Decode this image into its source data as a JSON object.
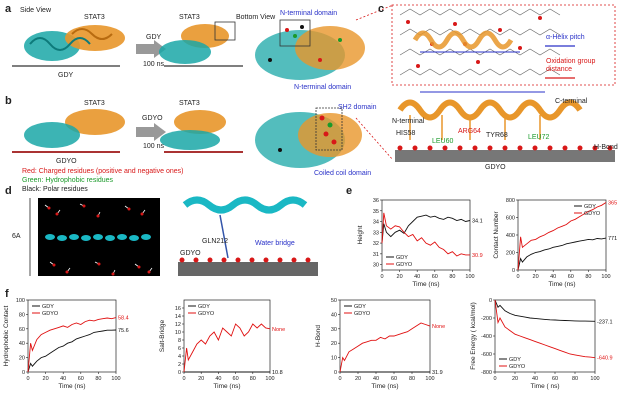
{
  "panels": {
    "a": {
      "letter": "a",
      "side_view": "Side View",
      "bottom_view": "Bottom View",
      "protein_left": "STAT3",
      "protein_right": "STAT3",
      "arrow_top": "GDY",
      "arrow_bottom": "100 ns",
      "surface_left": "GDY",
      "domain_top": "N-terminal domain",
      "domain_bottom": "N-terminal domain"
    },
    "b": {
      "letter": "b",
      "protein_left": "STAT3",
      "protein_right": "STAT3",
      "arrow_top": "GDYO",
      "arrow_bottom": "100 ns",
      "surface_left": "GDYO",
      "domain_top": "SH2 domain",
      "domain_bottom": "Coiled coil domain",
      "legend_red": "Red:    Charged residues (positive and negative ones)",
      "legend_green": "Green:  Hydrophobic residues",
      "legend_black": "Black:  Polar residues"
    },
    "c": {
      "letter": "c",
      "helix_pitch": "α-Helix pitch",
      "oxidation": "Oxidation group distance",
      "n_terminal": "N-terminal",
      "c_terminal": "C-terminal",
      "his58": "HIS58",
      "leu60": "LEU60",
      "arg64": "ARG64",
      "tyr68": "TYR68",
      "leu72": "LEU72",
      "hbond": "H-Bond",
      "surface": "GDYO"
    },
    "d": {
      "letter": "d",
      "thickness": "6A",
      "residue": "GLN212",
      "water_bridge": "Water bridge",
      "surface": "GDYO"
    },
    "e": {
      "letter": "e"
    },
    "f": {
      "letter": "f"
    }
  },
  "colors": {
    "gdy": "#111111",
    "gdyo": "#e01010",
    "label_blue": "#2a32c8",
    "helix_orange": "#e8962a",
    "protein_cyan": "#1aa7a7"
  },
  "chart_data": [
    {
      "id": "height",
      "type": "line",
      "xlabel": "Time (ns)",
      "ylabel": "Height",
      "xlim": [
        0,
        100
      ],
      "ylim": [
        29.5,
        36
      ],
      "xticks": [
        0,
        20,
        40,
        60,
        80,
        100
      ],
      "yticks": [
        30,
        31,
        32,
        33,
        34,
        35,
        36
      ],
      "legend": "bottom-left",
      "series": [
        {
          "name": "GDY",
          "color": "#111111",
          "x": [
            0,
            2,
            5,
            10,
            15,
            20,
            25,
            30,
            35,
            40,
            45,
            50,
            55,
            60,
            65,
            70,
            75,
            80,
            85,
            90,
            95,
            100
          ],
          "y": [
            32.0,
            33.8,
            33.0,
            32.6,
            33.0,
            33.2,
            32.9,
            33.6,
            34.0,
            34.4,
            34.5,
            34.6,
            34.4,
            34.5,
            34.3,
            34.2,
            34.4,
            34.3,
            34.1,
            34.2,
            34.0,
            34.1
          ]
        },
        {
          "name": "GDYO",
          "color": "#e01010",
          "x": [
            0,
            2,
            5,
            10,
            15,
            20,
            25,
            30,
            35,
            40,
            45,
            50,
            55,
            60,
            65,
            70,
            75,
            80,
            85,
            90,
            95,
            100
          ],
          "y": [
            32.0,
            34.8,
            33.6,
            33.3,
            33.6,
            33.5,
            33.0,
            32.6,
            32.8,
            32.2,
            32.5,
            32.0,
            31.8,
            32.1,
            31.6,
            31.4,
            31.0,
            31.2,
            30.8,
            31.0,
            30.9,
            30.9
          ]
        }
      ],
      "end_labels": [
        "34.1",
        "30.9"
      ]
    },
    {
      "id": "contact",
      "type": "line",
      "xlabel": "Time (ns)",
      "ylabel": "Contact Number",
      "xlim": [
        0,
        100
      ],
      "ylim": [
        0,
        800
      ],
      "xticks": [
        0,
        20,
        40,
        60,
        80,
        100
      ],
      "yticks": [
        0,
        200,
        400,
        600,
        800
      ],
      "legend": "top-right",
      "series": [
        {
          "name": "GDY",
          "color": "#111111",
          "x": [
            0,
            3,
            5,
            10,
            15,
            20,
            25,
            30,
            35,
            40,
            45,
            50,
            55,
            60,
            65,
            70,
            75,
            80,
            85,
            90,
            95,
            100
          ],
          "y": [
            0,
            130,
            90,
            150,
            180,
            200,
            210,
            230,
            240,
            260,
            270,
            280,
            300,
            310,
            320,
            330,
            340,
            350,
            345,
            360,
            355,
            365
          ]
        },
        {
          "name": "GDYO",
          "color": "#e01010",
          "x": [
            0,
            3,
            5,
            10,
            15,
            20,
            25,
            30,
            35,
            40,
            45,
            50,
            55,
            60,
            65,
            70,
            75,
            80,
            85,
            90,
            95,
            100
          ],
          "y": [
            0,
            380,
            260,
            300,
            340,
            350,
            380,
            400,
            430,
            450,
            480,
            500,
            520,
            560,
            580,
            610,
            640,
            670,
            690,
            720,
            740,
            771
          ]
        }
      ],
      "end_labels": [
        "771",
        "365"
      ]
    },
    {
      "id": "hydrophobic",
      "type": "line",
      "xlabel": "Time (ns)",
      "ylabel": "Hydrophobic Contact",
      "xlim": [
        0,
        100
      ],
      "ylim": [
        0,
        100
      ],
      "xticks": [
        0,
        20,
        40,
        60,
        80,
        100
      ],
      "yticks": [
        0,
        20,
        40,
        60,
        80,
        100
      ],
      "legend": "top-left",
      "series": [
        {
          "name": "GDY",
          "color": "#111111",
          "x": [
            0,
            3,
            5,
            10,
            15,
            20,
            25,
            30,
            35,
            40,
            45,
            50,
            55,
            60,
            65,
            70,
            75,
            80,
            85,
            90,
            95,
            100
          ],
          "y": [
            0,
            12,
            8,
            15,
            20,
            22,
            26,
            30,
            34,
            36,
            40,
            42,
            46,
            48,
            50,
            52,
            55,
            56,
            57,
            58,
            58,
            58.4
          ]
        },
        {
          "name": "GDYO",
          "color": "#e01010",
          "x": [
            0,
            3,
            5,
            10,
            15,
            20,
            25,
            30,
            35,
            40,
            45,
            50,
            55,
            60,
            65,
            70,
            75,
            80,
            85,
            90,
            95,
            100
          ],
          "y": [
            0,
            40,
            30,
            45,
            52,
            55,
            58,
            60,
            62,
            64,
            62,
            66,
            68,
            66,
            70,
            72,
            71,
            73,
            74,
            75,
            74,
            75.6
          ]
        }
      ],
      "end_labels": [
        "75.6",
        "58.4"
      ]
    },
    {
      "id": "saltbridge",
      "type": "line",
      "xlabel": "Time (ns)",
      "ylabel": "Salt-Bridge",
      "xlim": [
        0,
        100
      ],
      "ylim": [
        0,
        18
      ],
      "xticks": [
        0,
        20,
        40,
        60,
        80,
        100
      ],
      "yticks": [
        0,
        2,
        4,
        6,
        8,
        10,
        12,
        14,
        16
      ],
      "legend": "top-left",
      "series": [
        {
          "name": "GDY",
          "color": "#111111",
          "x": [
            0,
            100
          ],
          "y": [
            0,
            0
          ]
        },
        {
          "name": "GDYO",
          "color": "#e01010",
          "x": [
            0,
            3,
            5,
            10,
            15,
            20,
            25,
            30,
            35,
            40,
            45,
            50,
            55,
            60,
            65,
            70,
            75,
            80,
            85,
            90,
            95,
            100
          ],
          "y": [
            0,
            6,
            3,
            5,
            7,
            8,
            7,
            9,
            10,
            8,
            11,
            10,
            9,
            12,
            11,
            9,
            10,
            12,
            11,
            12,
            11,
            10.8
          ]
        }
      ],
      "end_labels": [
        "10.8",
        "None"
      ]
    },
    {
      "id": "hbond",
      "type": "line",
      "xlabel": "Time (ns)",
      "ylabel": "H-Bond",
      "xlim": [
        0,
        100
      ],
      "ylim": [
        0,
        50
      ],
      "xticks": [
        0,
        20,
        40,
        60,
        80,
        100
      ],
      "yticks": [
        0,
        10,
        20,
        30,
        40,
        50
      ],
      "legend": "top-left",
      "series": [
        {
          "name": "GDY",
          "color": "#111111",
          "x": [
            0,
            100
          ],
          "y": [
            0,
            0
          ]
        },
        {
          "name": "GDYO",
          "color": "#e01010",
          "x": [
            0,
            3,
            5,
            10,
            15,
            20,
            25,
            30,
            35,
            40,
            45,
            50,
            55,
            60,
            65,
            70,
            75,
            80,
            85,
            90,
            95,
            100
          ],
          "y": [
            0,
            10,
            8,
            14,
            16,
            18,
            20,
            21,
            22,
            22,
            24,
            23,
            25,
            25,
            26,
            27,
            28,
            30,
            32,
            34,
            33,
            31.9
          ]
        }
      ],
      "end_labels": [
        "31.9",
        "None"
      ]
    },
    {
      "id": "freeenergy",
      "type": "line",
      "xlabel": "Time ( ns)",
      "ylabel": "Free Energy ( kcal/mol)",
      "xlim": [
        0,
        100
      ],
      "ylim": [
        -800,
        0
      ],
      "xticks": [
        0,
        20,
        40,
        60,
        80,
        100
      ],
      "yticks": [
        -800,
        -600,
        -400,
        -200,
        0
      ],
      "legend": "bottom-left",
      "series": [
        {
          "name": "GDY",
          "color": "#111111",
          "x": [
            0,
            3,
            5,
            10,
            15,
            20,
            25,
            30,
            35,
            40,
            45,
            50,
            55,
            60,
            65,
            70,
            75,
            80,
            85,
            90,
            95,
            100
          ],
          "y": [
            0,
            -80,
            -60,
            -120,
            -150,
            -170,
            -180,
            -190,
            -200,
            -205,
            -210,
            -215,
            -220,
            -222,
            -225,
            -228,
            -230,
            -232,
            -234,
            -235,
            -236,
            -237.1
          ]
        },
        {
          "name": "GDYO",
          "color": "#e01010",
          "x": [
            0,
            3,
            5,
            10,
            15,
            20,
            25,
            30,
            35,
            40,
            45,
            50,
            55,
            60,
            65,
            70,
            75,
            80,
            85,
            90,
            95,
            100
          ],
          "y": [
            0,
            -250,
            -200,
            -300,
            -340,
            -380,
            -400,
            -420,
            -440,
            -460,
            -480,
            -500,
            -520,
            -540,
            -560,
            -580,
            -600,
            -610,
            -620,
            -630,
            -635,
            -640.9
          ]
        }
      ],
      "end_labels": [
        "-237.1",
        "-640.9"
      ]
    }
  ]
}
